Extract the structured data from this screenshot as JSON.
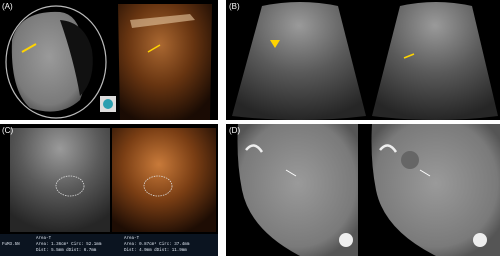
{
  "panels": [
    {
      "label": "(A)"
    },
    {
      "label": "(B)"
    },
    {
      "label": "(C)",
      "probe": "FuM3.5N",
      "measurements": [
        {
          "title": "Area-T",
          "line1": "Area: 1.36cm²  Circ: 52.1mm",
          "line2": "Dist: 5.5mm  dDist: 6.7mm"
        },
        {
          "title": "Area-T",
          "line1": "Area: 0.87cm²  Circ: 37.4mm",
          "line2": "Dist: 4.9mm  dDist: 11.9mm"
        }
      ]
    },
    {
      "label": "(D)"
    }
  ]
}
